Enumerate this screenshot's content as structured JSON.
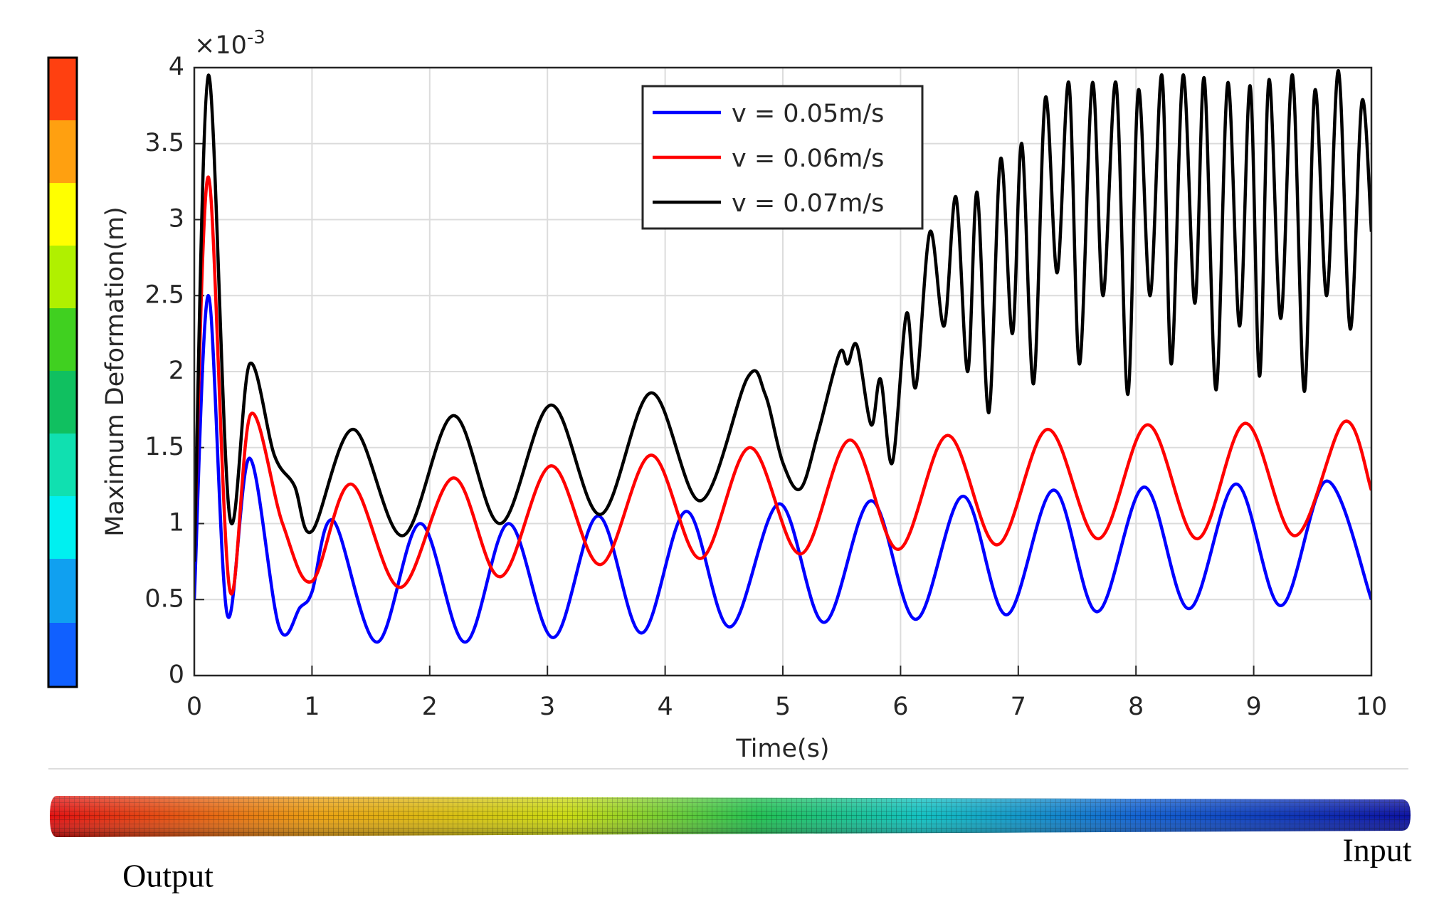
{
  "chart_data": {
    "type": "line",
    "xlabel": "Time(s)",
    "ylabel": "Maximum Deformation(m)",
    "y_offset_text": [
      "×10",
      "-3"
    ],
    "xlim": [
      0,
      10
    ],
    "xticks": [
      0,
      1,
      2,
      3,
      4,
      5,
      6,
      7,
      8,
      9,
      10
    ],
    "ylim": [
      0,
      4
    ],
    "yticks": [
      0,
      0.5,
      1,
      1.5,
      2,
      2.5,
      3,
      3.5,
      4
    ],
    "grid": true,
    "legend": "upper center",
    "series": [
      {
        "name": "v = 0.05m/s",
        "color": "#0000ff",
        "x": [
          0,
          0.12,
          0.28,
          0.47,
          0.72,
          0.9,
          1.0,
          1.18,
          1.55,
          1.92,
          2.3,
          2.67,
          3.05,
          3.43,
          3.8,
          4.18,
          4.55,
          4.97,
          5.35,
          5.75,
          6.13,
          6.53,
          6.9,
          7.3,
          7.67,
          8.07,
          8.45,
          8.85,
          9.23,
          9.62,
          10
        ],
        "values": [
          0.5,
          2.5,
          0.4,
          1.43,
          0.32,
          0.45,
          0.55,
          1.02,
          0.22,
          1.0,
          0.22,
          1.0,
          0.25,
          1.05,
          0.28,
          1.08,
          0.32,
          1.13,
          0.35,
          1.15,
          0.37,
          1.18,
          0.4,
          1.22,
          0.42,
          1.24,
          0.44,
          1.26,
          0.46,
          1.28,
          0.5
        ]
      },
      {
        "name": "v = 0.06m/s",
        "color": "#ff0000",
        "x": [
          0,
          0.12,
          0.3,
          0.48,
          0.75,
          1.0,
          1.33,
          1.75,
          2.2,
          2.6,
          3.03,
          3.45,
          3.88,
          4.3,
          4.72,
          5.15,
          5.57,
          5.98,
          6.4,
          6.82,
          7.25,
          7.68,
          8.1,
          8.52,
          8.93,
          9.35,
          9.77,
          10
        ],
        "values": [
          0.8,
          3.28,
          0.57,
          1.72,
          1.0,
          0.62,
          1.26,
          0.58,
          1.3,
          0.65,
          1.38,
          0.73,
          1.45,
          0.77,
          1.5,
          0.8,
          1.55,
          0.83,
          1.58,
          0.86,
          1.62,
          0.9,
          1.65,
          0.9,
          1.66,
          0.92,
          1.67,
          1.22
        ]
      },
      {
        "name": "v = 0.07m/s",
        "color": "#000000",
        "x": [
          0,
          0.12,
          0.3,
          0.47,
          0.68,
          0.85,
          1.0,
          1.35,
          1.77,
          2.2,
          2.6,
          3.03,
          3.45,
          3.88,
          4.3,
          4.7,
          4.85,
          5.0,
          5.15,
          5.3,
          5.48,
          5.55,
          5.63,
          5.75,
          5.83,
          5.93,
          6.05,
          6.13,
          6.25,
          6.37,
          6.47,
          6.57,
          6.65,
          6.75,
          6.85,
          6.95,
          7.03,
          7.13,
          7.23,
          7.33,
          7.43,
          7.52,
          7.63,
          7.72,
          7.83,
          7.93,
          8.02,
          8.12,
          8.22,
          8.3,
          8.4,
          8.5,
          8.58,
          8.68,
          8.78,
          8.88,
          8.97,
          9.05,
          9.13,
          9.23,
          9.33,
          9.43,
          9.52,
          9.62,
          9.72,
          9.82,
          9.92,
          10
        ],
        "values": [
          0.75,
          3.95,
          1.05,
          2.05,
          1.45,
          1.25,
          0.95,
          1.62,
          0.92,
          1.71,
          1.0,
          1.78,
          1.06,
          1.86,
          1.15,
          1.96,
          1.85,
          1.4,
          1.23,
          1.6,
          2.12,
          2.05,
          2.17,
          1.65,
          1.95,
          1.4,
          2.38,
          1.9,
          2.92,
          2.3,
          3.15,
          2.0,
          3.18,
          1.73,
          3.4,
          2.25,
          3.5,
          1.92,
          3.8,
          2.65,
          3.9,
          2.05,
          3.9,
          2.5,
          3.9,
          1.85,
          3.85,
          2.5,
          3.95,
          2.05,
          3.95,
          2.45,
          3.93,
          1.88,
          3.9,
          2.3,
          3.88,
          1.97,
          3.92,
          2.35,
          3.95,
          1.87,
          3.85,
          2.5,
          3.98,
          2.28,
          3.78,
          2.92
        ]
      }
    ]
  },
  "beam": {
    "labels": [
      "Output",
      "Input"
    ]
  }
}
